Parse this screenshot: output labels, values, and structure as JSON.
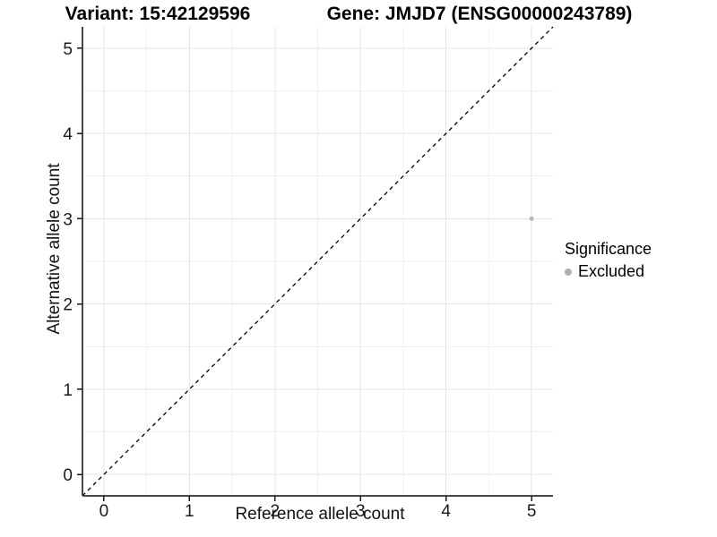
{
  "chart_data": {
    "type": "scatter",
    "title_left": "Variant: 15:42129596",
    "title_right": "Gene: JMJD7 (ENSG00000243789)",
    "xlabel": "Reference allele count",
    "ylabel": "Alternative allele count",
    "xlim": [
      -0.25,
      5.25
    ],
    "ylim": [
      -0.25,
      5.25
    ],
    "x_ticks": [
      0,
      1,
      2,
      3,
      4,
      5
    ],
    "y_ticks": [
      0,
      1,
      2,
      3,
      4,
      5
    ],
    "x_minor_ticks": [
      0.5,
      1.5,
      2.5,
      3.5,
      4.5
    ],
    "y_minor_ticks": [
      0.5,
      1.5,
      2.5,
      3.5,
      4.5
    ],
    "grid": "major+minor",
    "points": [
      {
        "x": 5,
        "y": 3,
        "series": "Excluded"
      }
    ],
    "reference_line": {
      "type": "identity",
      "style": "dashed",
      "color": "#000000"
    },
    "legend": {
      "title": "Significance",
      "position": "right",
      "items": [
        {
          "label": "Excluded",
          "color": "#b0b0b0"
        }
      ]
    },
    "colors": {
      "point": "#b8b8b8",
      "grid_major": "#e4e4e4",
      "grid_minor": "#f1f1f1",
      "axis_line": "#474747",
      "tick_mark": "#1a1a1a",
      "tick_text": "#1a1a1a"
    }
  }
}
